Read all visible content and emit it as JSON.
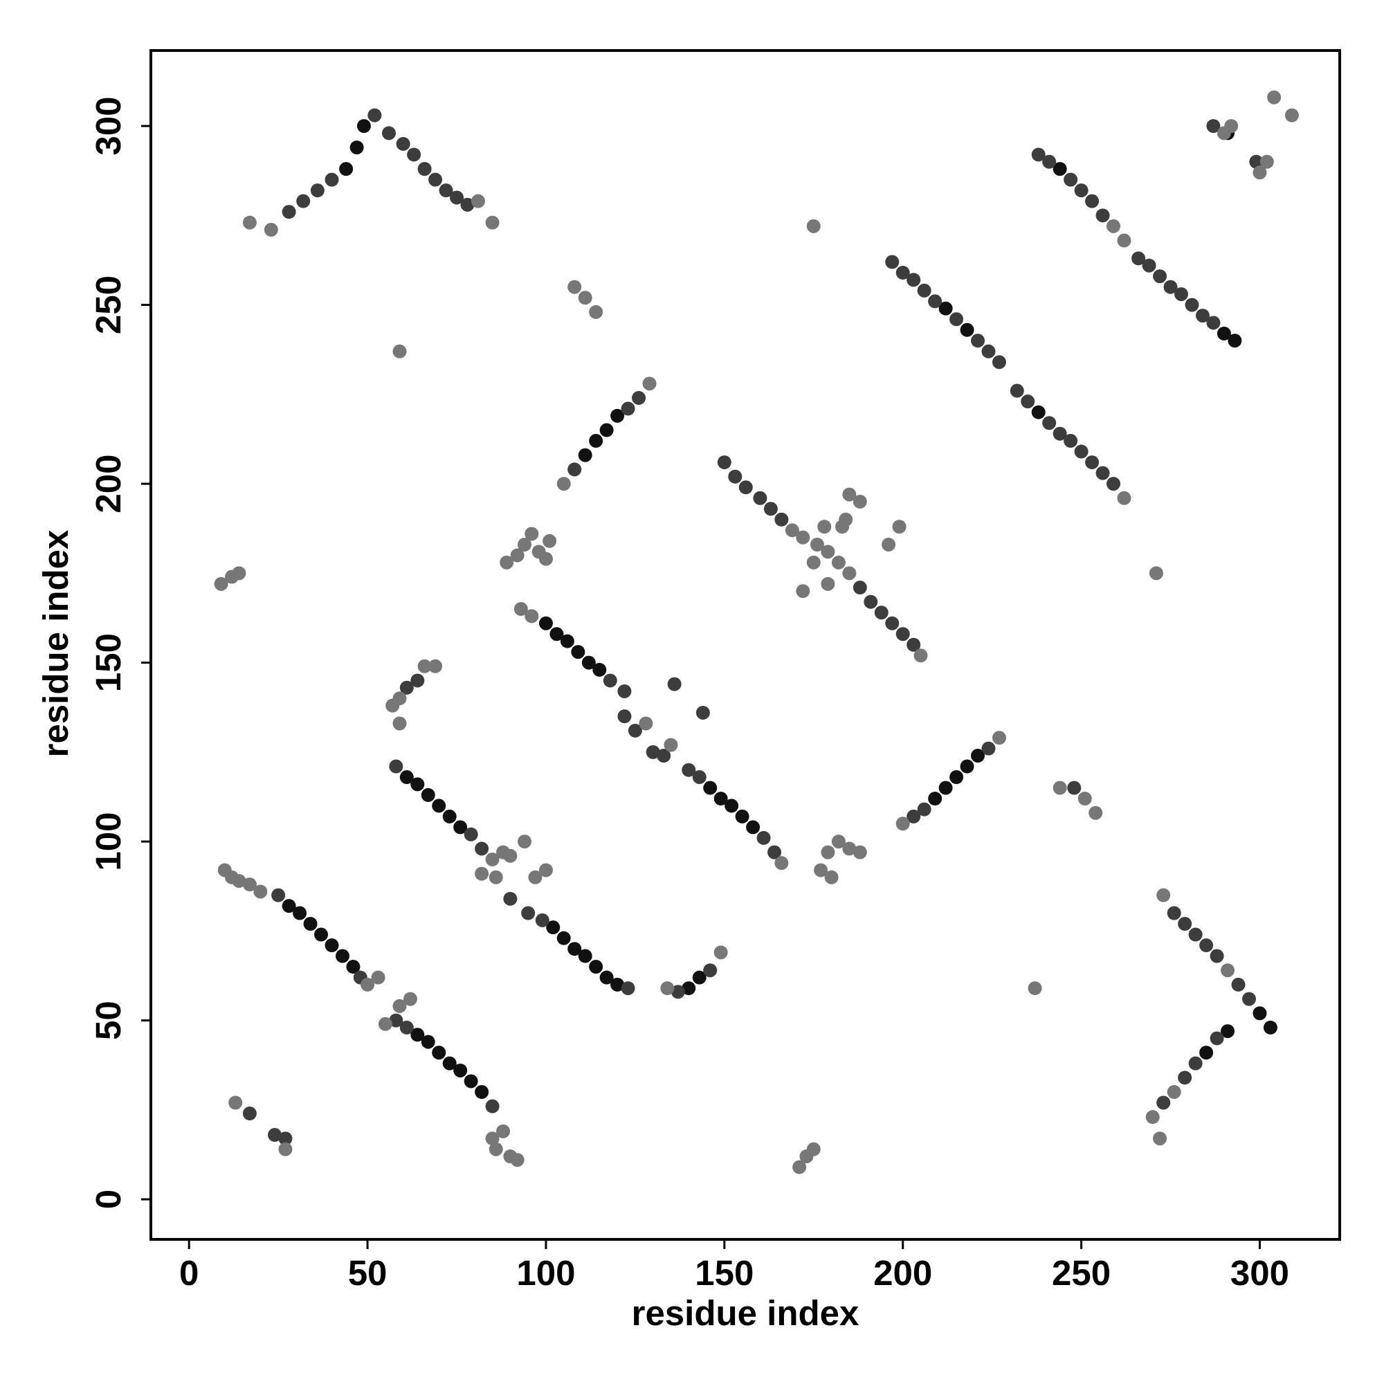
{
  "chart_data": {
    "type": "scatter",
    "x_label": "residue index",
    "y_label": "residue index",
    "xlim": [
      -10.7,
      322.4
    ],
    "ylim": [
      -11.2,
      321.1
    ],
    "xticks": [
      0,
      50,
      100,
      150,
      200,
      250,
      300
    ],
    "yticks": [
      0,
      50,
      100,
      150,
      200,
      250,
      300
    ],
    "series": [
      {
        "color": "#111111",
        "x": [
          28,
          31,
          34,
          37,
          40,
          43,
          46,
          64,
          67,
          70,
          73,
          76,
          79,
          82,
          61,
          64,
          67,
          70,
          73,
          76,
          102,
          105,
          108,
          111,
          114,
          117,
          120,
          100,
          103,
          106,
          109,
          112,
          115,
          146,
          149,
          152,
          155,
          158,
          111,
          114,
          117,
          120,
          209,
          212,
          215,
          218,
          221,
          49,
          47,
          44,
          291,
          303,
          300,
          291,
          285,
          244,
          290,
          293,
          212,
          218,
          238,
          143,
          140
        ],
        "values": [
          82,
          80,
          77,
          74,
          71,
          68,
          65,
          46,
          44,
          41,
          38,
          36,
          33,
          30,
          118,
          116,
          113,
          110,
          107,
          104,
          76,
          73,
          70,
          68,
          65,
          62,
          60,
          161,
          158,
          156,
          153,
          150,
          148,
          115,
          112,
          110,
          107,
          104,
          208,
          212,
          215,
          219,
          112,
          115,
          118,
          121,
          124,
          300,
          294,
          288,
          298,
          48,
          52,
          47,
          41,
          288,
          242,
          240,
          249,
          243,
          220,
          62,
          59
        ]
      },
      {
        "color": "#3d3d3d",
        "x": [
          25,
          48,
          58,
          61,
          85,
          58,
          79,
          82,
          61,
          64,
          90,
          95,
          99,
          123,
          137,
          146,
          118,
          122,
          122,
          125,
          130,
          133,
          140,
          143,
          161,
          164,
          136,
          144,
          108,
          123,
          126,
          203,
          206,
          224,
          150,
          153,
          156,
          160,
          163,
          166,
          188,
          191,
          194,
          197,
          200,
          203,
          197,
          200,
          203,
          206,
          209,
          215,
          221,
          224,
          227,
          232,
          235,
          241,
          244,
          247,
          250,
          253,
          256,
          259,
          238,
          241,
          247,
          250,
          253,
          256,
          266,
          269,
          272,
          275,
          278,
          281,
          284,
          287,
          276,
          279,
          282,
          285,
          288,
          294,
          297,
          273,
          279,
          282,
          288,
          28,
          32,
          36,
          40,
          52,
          56,
          60,
          63,
          66,
          69,
          72,
          75,
          78,
          287,
          299,
          17,
          24,
          27,
          248
        ],
        "values": [
          85,
          62,
          50,
          48,
          26,
          121,
          102,
          98,
          143,
          145,
          84,
          80,
          78,
          59,
          58,
          64,
          145,
          142,
          135,
          131,
          125,
          124,
          120,
          118,
          101,
          97,
          144,
          136,
          204,
          221,
          224,
          107,
          109,
          126,
          206,
          202,
          199,
          196,
          193,
          190,
          171,
          167,
          164,
          161,
          158,
          155,
          262,
          259,
          257,
          254,
          251,
          246,
          240,
          237,
          234,
          226,
          223,
          217,
          214,
          212,
          209,
          206,
          203,
          200,
          292,
          290,
          285,
          282,
          279,
          275,
          263,
          261,
          258,
          255,
          253,
          250,
          247,
          245,
          80,
          77,
          74,
          71,
          68,
          60,
          56,
          27,
          34,
          38,
          45,
          276,
          279,
          282,
          285,
          303,
          298,
          295,
          292,
          288,
          285,
          282,
          280,
          278,
          300,
          290,
          24,
          18,
          17,
          115
        ]
      },
      {
        "color": "#777777",
        "x": [
          10,
          12,
          14,
          17,
          20,
          50,
          53,
          55,
          59,
          62,
          85,
          88,
          90,
          92,
          86,
          85,
          82,
          86,
          88,
          57,
          59,
          66,
          69,
          59,
          97,
          100,
          94,
          90,
          134,
          149,
          93,
          96,
          128,
          135,
          166,
          89,
          92,
          94,
          96,
          98,
          100,
          101,
          105,
          129,
          200,
          227,
          169,
          172,
          176,
          179,
          182,
          185,
          205,
          178,
          184,
          188,
          179,
          175,
          172,
          196,
          199,
          185,
          183,
          177,
          179,
          182,
          185,
          188,
          180,
          262,
          259,
          262,
          273,
          270,
          276,
          272,
          291,
          17,
          23,
          81,
          85,
          290,
          302,
          304,
          309,
          300,
          292,
          9,
          12,
          14,
          13,
          27,
          59,
          108,
          111,
          114,
          175,
          173,
          171,
          175,
          237,
          271,
          244,
          251,
          254
        ],
        "values": [
          92,
          90,
          89,
          88,
          86,
          60,
          62,
          49,
          54,
          56,
          17,
          19,
          12,
          11,
          14,
          95,
          91,
          90,
          97,
          138,
          140,
          149,
          149,
          133,
          90,
          92,
          100,
          96,
          59,
          69,
          165,
          163,
          133,
          127,
          94,
          178,
          180,
          183,
          186,
          181,
          179,
          184,
          200,
          228,
          105,
          129,
          187,
          185,
          183,
          181,
          178,
          175,
          152,
          188,
          190,
          195,
          172,
          178,
          170,
          183,
          188,
          197,
          188,
          92,
          97,
          100,
          98,
          97,
          90,
          196,
          272,
          268,
          85,
          23,
          30,
          17,
          64,
          273,
          271,
          279,
          273,
          298,
          290,
          308,
          303,
          287,
          300,
          172,
          174,
          175,
          27,
          14,
          237,
          255,
          252,
          248,
          272,
          12,
          9,
          14,
          59,
          175,
          115,
          112,
          108
        ]
      }
    ]
  }
}
